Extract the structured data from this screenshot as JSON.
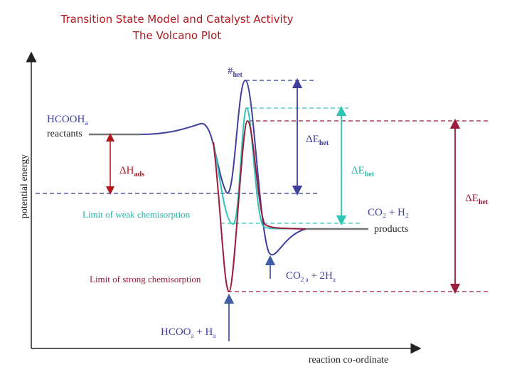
{
  "title_line1": "Transition State Model and Catalyst Activity",
  "title_line2": "The Volcano Plot",
  "axes": {
    "y_label": "potential energy",
    "x_label": "reaction co-ordinate"
  },
  "labels": {
    "ts_main": "#",
    "ts_sub": "het",
    "reactant_species_main": "HCOOH",
    "reactant_species_sub": "a",
    "reactants": "reactants",
    "dh_main": "ΔH",
    "dh_sub": "ads",
    "de_blue_main": "ΔE",
    "de_blue_sub": "het",
    "de_cyan_main": "ΔE",
    "de_cyan_sub": "het",
    "de_red_main": "ΔE",
    "de_red_sub": "het",
    "weak_limit": "Limit of weak chemisorption",
    "strong_limit": "Limit of strong chemisorption",
    "co2_h2": "CO₂  +  H₂",
    "products": "products",
    "co2a_main": "CO",
    "co2a_sub": "2 a",
    "co2a_rest": " + 2H",
    "co2a_sub2": "a",
    "hcooa_main": "HCOO",
    "hcooa_sub": "a",
    "hcooa_mid": " + H",
    "hcooa_sub2": "a"
  },
  "colors": {
    "title": "#b3161c",
    "blue": "#3f3f9e",
    "cyan": "#2ec4b6",
    "red": "#9c1c3c",
    "cyan_text": "#22b5a8",
    "blue_dash": "#2b3a8c"
  }
}
